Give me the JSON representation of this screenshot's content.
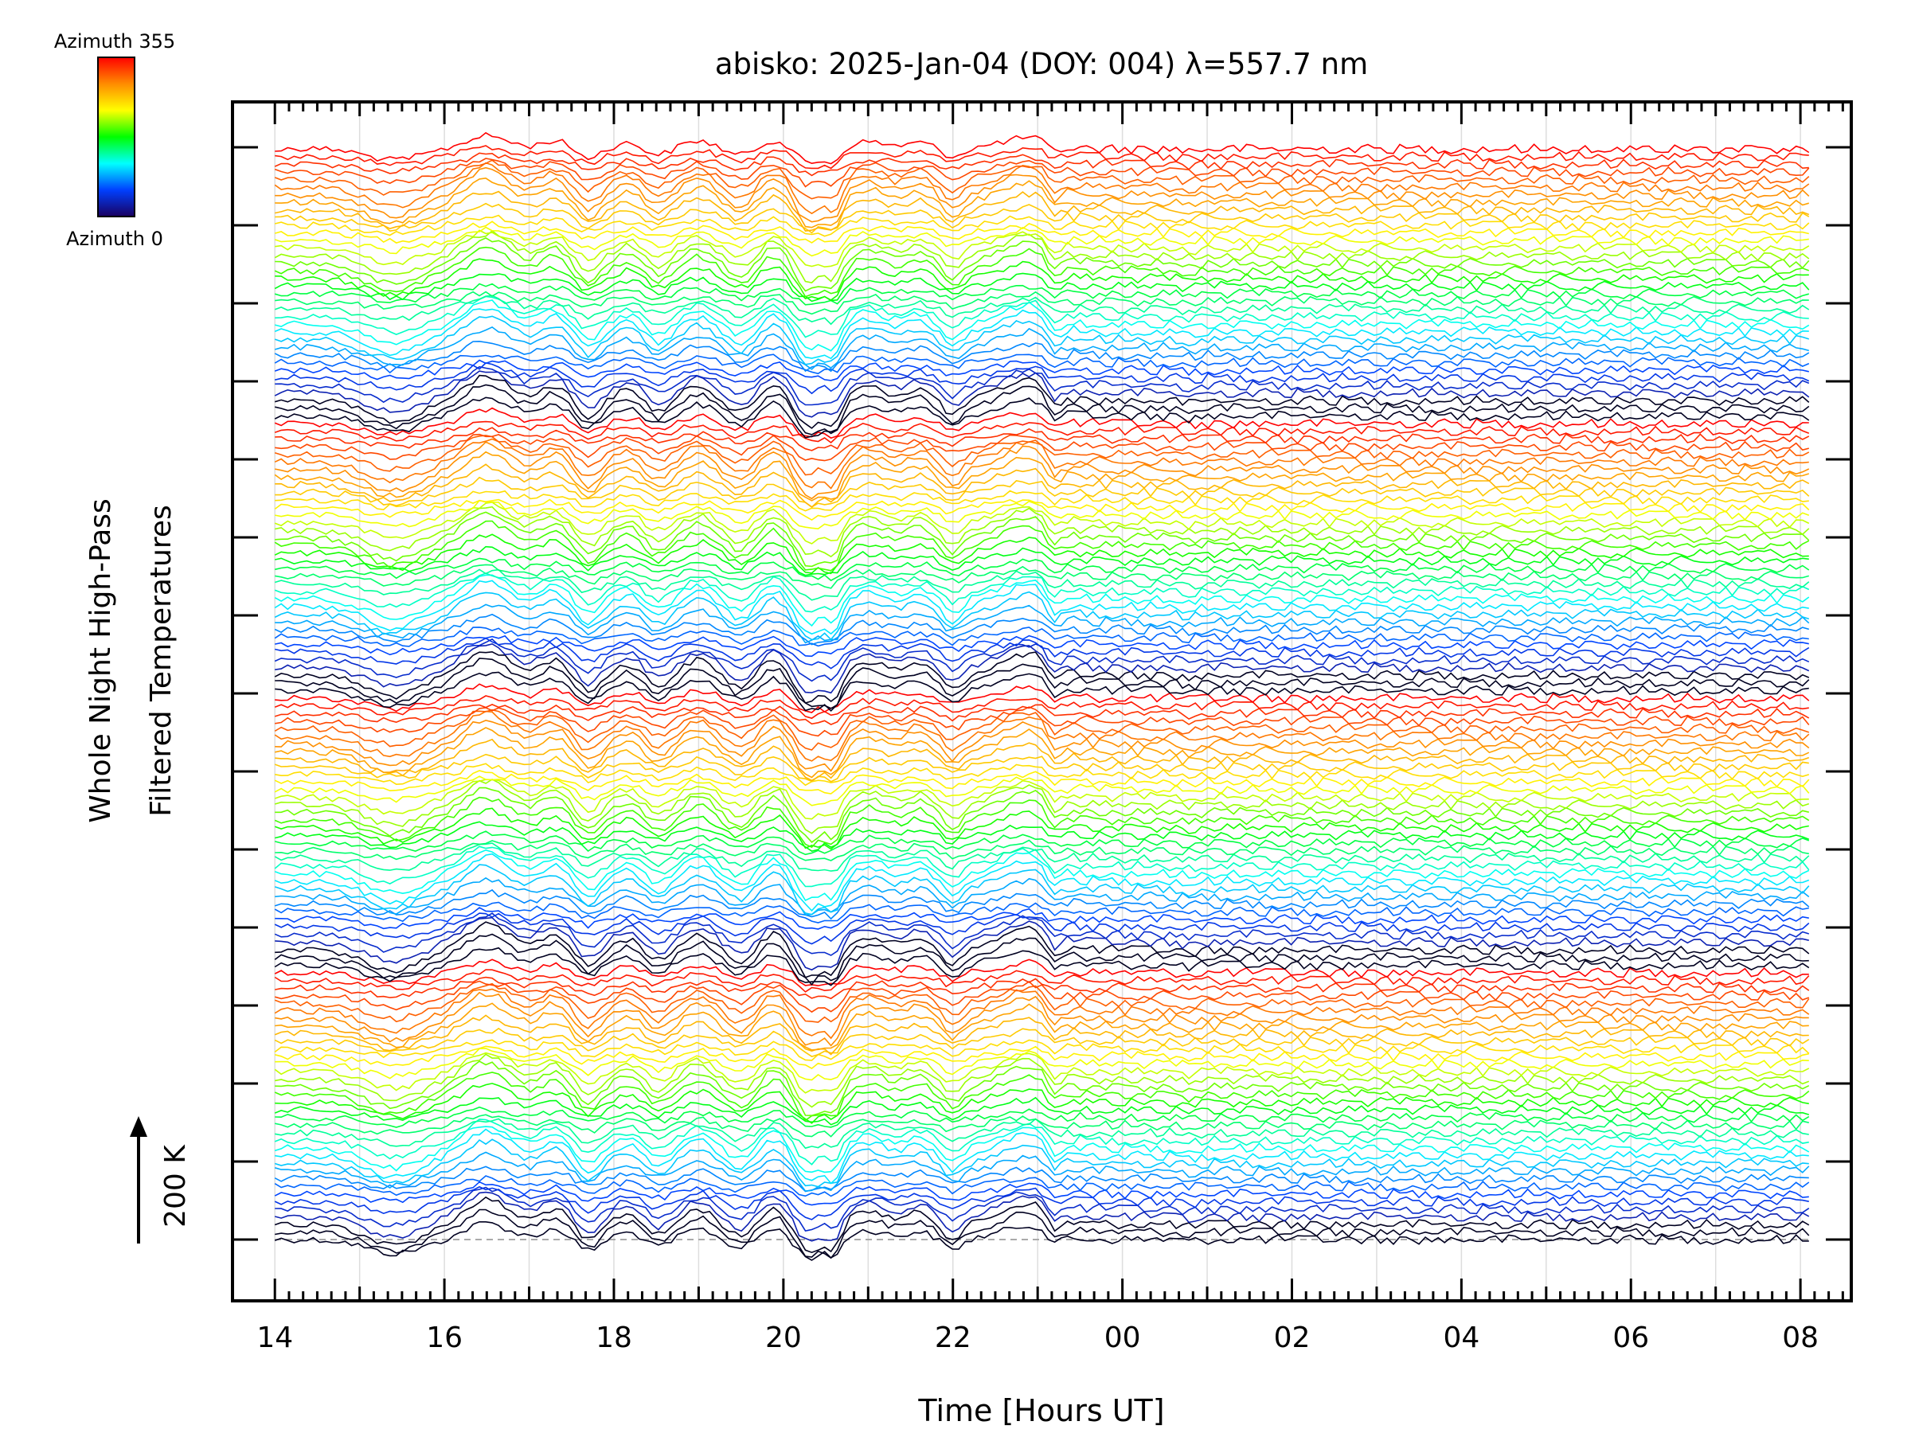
{
  "chart_data": {
    "type": "line",
    "title": "abisko: 2025-Jan-04 (DOY: 004) λ=557.7 nm",
    "xlabel": "Time [Hours UT]",
    "ylabel_line1": "Whole Night High-Pass",
    "ylabel_line2": "Filtered Temperatures",
    "scale_label": "200 K",
    "colorbar": {
      "top_label": "Azimuth 355",
      "bottom_label": "Azimuth 0",
      "colors": [
        "#ff0000",
        "#ff8c00",
        "#ffff00",
        "#00ff00",
        "#00ffff",
        "#0040ff",
        "#1a0060"
      ]
    },
    "x_ticks": [
      "14",
      "16",
      "18",
      "20",
      "22",
      "00",
      "02",
      "04",
      "06",
      "08"
    ],
    "x_tick_hours": [
      14,
      16,
      18,
      20,
      22,
      24,
      26,
      28,
      30,
      32
    ],
    "xlim_hours": [
      13.5,
      32.6
    ],
    "data_range_hours": [
      14.0,
      32.1
    ],
    "y_offset_ticks": 15,
    "grid": true,
    "series_count": 144,
    "series_note": "stacked high-pass filtered temperature traces, colored by azimuth"
  }
}
